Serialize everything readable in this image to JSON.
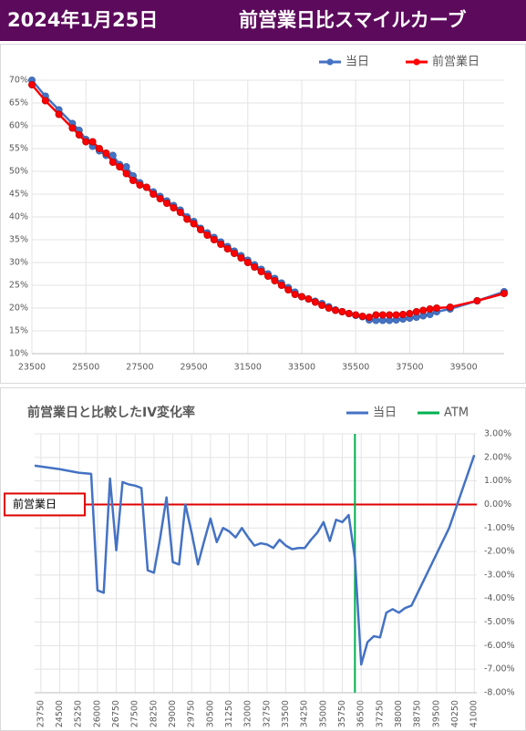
{
  "header": {
    "date": "2024年1月25日",
    "title": "前営業日比スマイルカーブ"
  },
  "chart_data": [
    {
      "type": "line",
      "x": [
        23500,
        24000,
        24500,
        25000,
        25250,
        25500,
        25750,
        26000,
        26250,
        26500,
        26750,
        27000,
        27250,
        27500,
        27750,
        28000,
        28250,
        28500,
        28750,
        29000,
        29250,
        29500,
        29750,
        30000,
        30250,
        30500,
        30750,
        31000,
        31250,
        31500,
        31750,
        32000,
        32250,
        32500,
        32750,
        33000,
        33250,
        33500,
        33750,
        34000,
        34250,
        34500,
        34750,
        35000,
        35250,
        35500,
        35750,
        36000,
        36250,
        36500,
        36750,
        37000,
        37250,
        37500,
        37750,
        38000,
        38250,
        38500,
        39000,
        40000,
        41000
      ],
      "series": [
        {
          "name": "当日",
          "color": "#4472c4",
          "values": [
            70,
            66.5,
            63.5,
            60.5,
            59,
            57,
            55.5,
            54.5,
            53.5,
            53.5,
            51.5,
            51,
            49,
            47.5,
            46.5,
            45.5,
            44.5,
            43.5,
            42.5,
            41.5,
            40,
            39,
            37.5,
            36.5,
            35.5,
            34.5,
            33.5,
            32.5,
            31.5,
            30.5,
            29.5,
            28.5,
            27.5,
            26.5,
            25.5,
            24.5,
            23.5,
            22.5,
            22,
            21.5,
            21,
            20.3,
            19.6,
            19.2,
            18.8,
            18.4,
            18.1,
            17.4,
            17.3,
            17.3,
            17.3,
            17.4,
            17.6,
            17.8,
            18,
            18.3,
            18.6,
            19.2,
            19.8,
            21.6,
            23.6
          ]
        },
        {
          "name": "前営業日",
          "color": "#ff0000",
          "values": [
            69,
            65.5,
            62.5,
            59.5,
            58,
            56.5,
            56.5,
            55,
            54,
            52,
            51,
            49.5,
            48,
            47,
            46.5,
            45,
            44,
            43,
            42,
            41,
            39.5,
            38.5,
            37.2,
            36,
            35,
            34,
            33,
            32,
            31,
            30,
            29,
            28,
            27,
            26,
            25,
            24,
            23,
            22.5,
            22,
            21.3,
            20.6,
            20,
            19.5,
            19.2,
            18.8,
            18.5,
            18.2,
            18,
            18.5,
            18.5,
            18.5,
            18.5,
            18.6,
            18.8,
            19.2,
            19.5,
            19.8,
            20,
            20.2,
            21.6,
            23.2
          ]
        }
      ],
      "markers": true,
      "xlim": [
        23500,
        41000
      ],
      "xticks": [
        23500,
        25500,
        27500,
        29500,
        31500,
        33500,
        35500,
        37500,
        39500
      ],
      "ylim": [
        10,
        70
      ],
      "yticks": [
        {
          "value": 10,
          "label": "10%"
        },
        {
          "value": 15,
          "label": "15%"
        },
        {
          "value": 20,
          "label": "20%"
        },
        {
          "value": 25,
          "label": "25%"
        },
        {
          "value": 30,
          "label": "30%"
        },
        {
          "value": 35,
          "label": "35%"
        },
        {
          "value": 40,
          "label": "40%"
        },
        {
          "value": 45,
          "label": "45%"
        },
        {
          "value": 50,
          "label": "50%"
        },
        {
          "value": 55,
          "label": "55%"
        },
        {
          "value": 60,
          "label": "60%"
        },
        {
          "value": 65,
          "label": "65%"
        },
        {
          "value": 70,
          "label": "70%"
        }
      ],
      "grid": true
    },
    {
      "type": "line",
      "title": "前営業日と比較したIV変化率",
      "x": [
        23500,
        24500,
        25250,
        25750,
        26000,
        26250,
        26500,
        26750,
        27000,
        27250,
        27500,
        27750,
        28000,
        28250,
        28500,
        28750,
        29000,
        29250,
        29500,
        29750,
        30000,
        30250,
        30500,
        30750,
        31000,
        31250,
        31500,
        31750,
        32000,
        32250,
        32500,
        32750,
        33000,
        33250,
        33500,
        33750,
        34000,
        34250,
        34500,
        34750,
        35000,
        35250,
        35500,
        35750,
        36000,
        36250,
        36500,
        36750,
        37000,
        37250,
        37500,
        37750,
        38000,
        38250,
        38500,
        39000,
        40000,
        41000
      ],
      "series": [
        {
          "name": "当日",
          "color": "#4472c4",
          "axis": "y2",
          "values": [
            1.65,
            1.5,
            1.35,
            1.3,
            -3.65,
            -3.75,
            1.1,
            -1.95,
            0.95,
            0.85,
            0.8,
            0.7,
            -2.8,
            -2.9,
            -1.4,
            0.3,
            -2.45,
            -2.55,
            0,
            -1.2,
            -2.55,
            -1.55,
            -0.6,
            -1.6,
            -1.0,
            -1.15,
            -1.4,
            -1.0,
            -1.4,
            -1.75,
            -1.65,
            -1.7,
            -1.85,
            -1.5,
            -1.75,
            -1.9,
            -1.85,
            -1.85,
            -1.5,
            -1.2,
            -0.75,
            -1.55,
            -0.65,
            -0.75,
            -0.45,
            -2.3,
            -6.8,
            -5.85,
            -5.6,
            -5.65,
            -4.6,
            -4.45,
            -4.6,
            -4.4,
            -4.3,
            -3.2,
            -1.0,
            2.1
          ]
        }
      ],
      "atm": {
        "name": "ATM",
        "color": "#00b050",
        "x": 36250
      },
      "reference_line": {
        "label": "前営業日",
        "value": 0,
        "color": "#e00000"
      },
      "markers": false,
      "xlim": [
        23500,
        41100
      ],
      "xticks": [
        23750,
        24500,
        25250,
        26000,
        26750,
        27500,
        28250,
        29000,
        29750,
        30500,
        31250,
        32000,
        32750,
        33500,
        34250,
        35000,
        35750,
        36500,
        37250,
        38000,
        38750,
        39500,
        40250,
        41000
      ],
      "y2lim": [
        -8,
        3
      ],
      "y2ticks": [
        {
          "value": 3,
          "label": "3.00%"
        },
        {
          "value": 2,
          "label": "2.00%"
        },
        {
          "value": 1,
          "label": "1.00%"
        },
        {
          "value": 0,
          "label": "0.00%"
        },
        {
          "value": -1,
          "label": "-1.00%"
        },
        {
          "value": -2,
          "label": "-2.00%"
        },
        {
          "value": -3,
          "label": "-3.00%"
        },
        {
          "value": -4,
          "label": "-4.00%"
        },
        {
          "value": -5,
          "label": "-5.00%"
        },
        {
          "value": -6,
          "label": "-6.00%"
        },
        {
          "value": -7,
          "label": "-7.00%"
        },
        {
          "value": -8,
          "label": "-8.00%"
        }
      ],
      "grid": true
    }
  ]
}
